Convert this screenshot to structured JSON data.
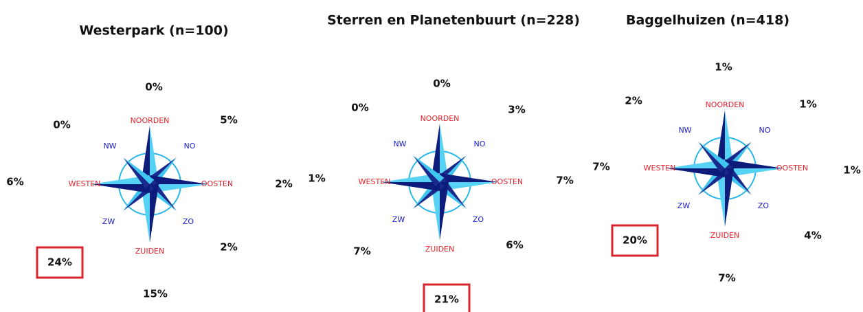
{
  "compass": {
    "directions": [
      "NOORDEN",
      "NO",
      "OOSTEN",
      "ZO",
      "ZUIDEN",
      "ZW",
      "WESTEN",
      "NW"
    ]
  },
  "panels": [
    {
      "title": "Westerpark (n=100)",
      "percentages": [
        "0%",
        "5%",
        "2%",
        "2%",
        "15%",
        "24%",
        "6%",
        "0%"
      ],
      "highlight": 5
    },
    {
      "title": "Sterren en Planetenbuurt (n=228)",
      "percentages": [
        "0%",
        "3%",
        "7%",
        "6%",
        "21%",
        "7%",
        "1%",
        "0%"
      ],
      "highlight": 4
    },
    {
      "title": "Baggelhuizen (n=418)",
      "percentages": [
        "1%",
        "1%",
        "1%",
        "4%",
        "7%",
        "20%",
        "7%",
        "2%"
      ],
      "highlight": 5
    }
  ]
}
